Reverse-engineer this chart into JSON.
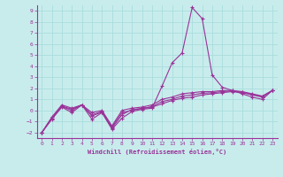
{
  "title": "",
  "xlabel": "Windchill (Refroidissement éolien,°C)",
  "ylabel": "",
  "background_color": "#c8ecec",
  "grid_color": "#aadddd",
  "line_color": "#993399",
  "xlim": [
    -0.5,
    23.5
  ],
  "ylim": [
    -2.5,
    9.5
  ],
  "xticks": [
    0,
    1,
    2,
    3,
    4,
    5,
    6,
    7,
    8,
    9,
    10,
    11,
    12,
    13,
    14,
    15,
    16,
    17,
    18,
    19,
    20,
    21,
    22,
    23
  ],
  "yticks": [
    -2,
    -1,
    0,
    1,
    2,
    3,
    4,
    5,
    6,
    7,
    8,
    9
  ],
  "series": [
    {
      "x": [
        0,
        1,
        2,
        3,
        4,
        5,
        6,
        7,
        8,
        9,
        10,
        11,
        12,
        13,
        14,
        15,
        16,
        17,
        18,
        19,
        20,
        21,
        22,
        23
      ],
      "y": [
        -2.0,
        -0.8,
        0.3,
        -0.2,
        0.5,
        -0.8,
        -0.2,
        -1.7,
        -0.7,
        -0.1,
        0.1,
        0.2,
        2.2,
        4.3,
        5.2,
        9.3,
        8.3,
        3.2,
        2.1,
        1.8,
        1.5,
        1.2,
        1.0,
        1.8
      ]
    },
    {
      "x": [
        0,
        1,
        2,
        3,
        4,
        5,
        6,
        7,
        8,
        9,
        10,
        11,
        12,
        13,
        14,
        15,
        16,
        17,
        18,
        19,
        20,
        21,
        22,
        23
      ],
      "y": [
        -2.0,
        -0.6,
        0.5,
        0.2,
        0.5,
        -0.2,
        0.0,
        -1.4,
        0.0,
        0.2,
        0.3,
        0.5,
        1.0,
        1.2,
        1.5,
        1.6,
        1.7,
        1.7,
        1.8,
        1.8,
        1.7,
        1.5,
        1.3,
        1.8
      ]
    },
    {
      "x": [
        0,
        1,
        2,
        3,
        4,
        5,
        6,
        7,
        8,
        9,
        10,
        11,
        12,
        13,
        14,
        15,
        16,
        17,
        18,
        19,
        20,
        21,
        22,
        23
      ],
      "y": [
        -2.0,
        -0.7,
        0.4,
        0.1,
        0.5,
        -0.4,
        -0.1,
        -1.5,
        -0.2,
        0.0,
        0.2,
        0.3,
        0.6,
        0.9,
        1.1,
        1.2,
        1.4,
        1.5,
        1.6,
        1.7,
        1.6,
        1.4,
        1.2,
        1.8
      ]
    },
    {
      "x": [
        0,
        1,
        2,
        3,
        4,
        5,
        6,
        7,
        8,
        9,
        10,
        11,
        12,
        13,
        14,
        15,
        16,
        17,
        18,
        19,
        20,
        21,
        22,
        23
      ],
      "y": [
        -2.0,
        -0.75,
        0.35,
        0.0,
        0.5,
        -0.5,
        -0.15,
        -1.6,
        -0.4,
        0.1,
        0.15,
        0.35,
        0.8,
        1.0,
        1.3,
        1.4,
        1.55,
        1.6,
        1.7,
        1.75,
        1.65,
        1.45,
        1.25,
        1.8
      ]
    }
  ]
}
